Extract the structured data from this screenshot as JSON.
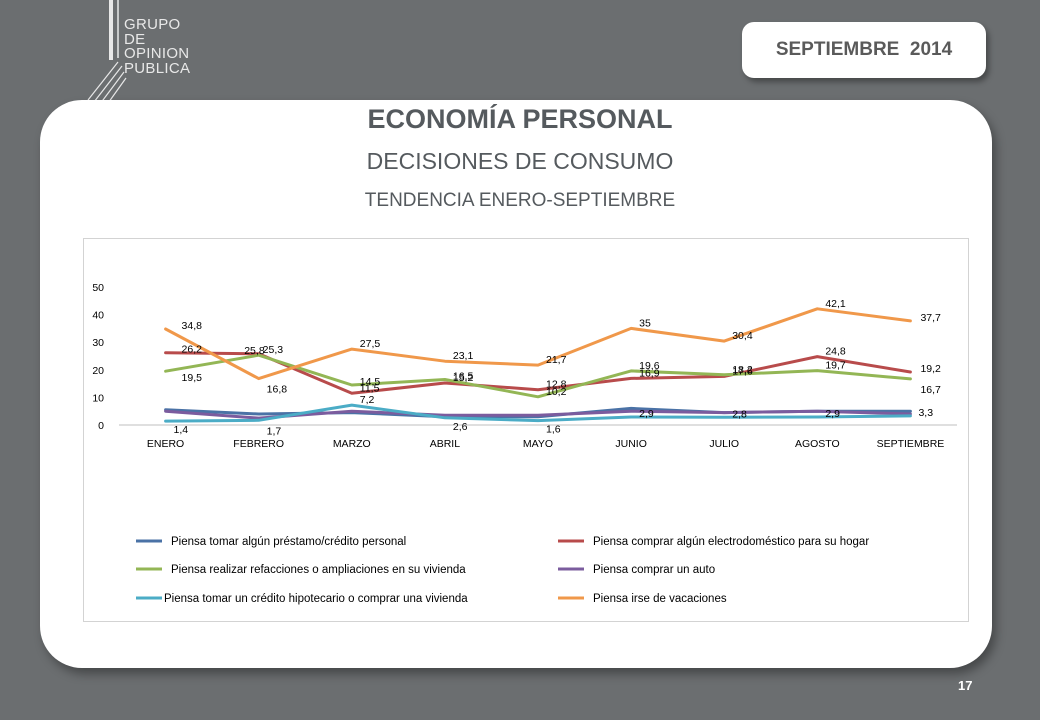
{
  "header": {
    "logo_lines": [
      "GRUPO",
      "DE",
      "OPINION",
      "PUBLICA"
    ],
    "date_badge": "SEPTIEMBRE  2014"
  },
  "slide": {
    "title": "ECONOMÍA PERSONAL",
    "subtitle": "DECISIONES DE CONSUMO",
    "subtitle2": "TENDENCIA ENERO-SEPTIEMBRE",
    "page_number": "17"
  },
  "colors": {
    "background": "#6b6e70",
    "card": "#ffffff",
    "text": "#555a5e"
  },
  "chart_data": {
    "type": "line",
    "categories": [
      "ENERO",
      "FEBRERO",
      "MARZO",
      "ABRIL",
      "MAYO",
      "JUNIO",
      "JULIO",
      "AGOSTO",
      "SEPTIEMBRE"
    ],
    "ylim": [
      0,
      50
    ],
    "yticks": [
      0,
      10,
      20,
      30,
      40,
      50
    ],
    "grid": false,
    "legend": "bottom",
    "series": [
      {
        "name": "Piensa tomar algún préstamo/crédito personal",
        "color": "#4a72a6",
        "values": [
          5.5,
          4.0,
          4.5,
          3.0,
          3.0,
          6.0,
          4.5,
          5.0,
          5.0
        ],
        "labels": [
          null,
          null,
          null,
          null,
          null,
          null,
          null,
          null,
          null
        ]
      },
      {
        "name": "Piensa comprar algún electrodoméstico para su hogar",
        "color": "#b84b4b",
        "values": [
          26.2,
          25.8,
          11.5,
          15.2,
          12.8,
          16.9,
          17.6,
          24.8,
          19.2
        ],
        "labels": [
          "26,2",
          "25,8",
          "11,5",
          "15,2",
          "12,8",
          "16,9",
          "17,6",
          "24,8",
          "19,2"
        ]
      },
      {
        "name": "Piensa realizar refacciones o ampliaciones en su vivienda",
        "color": "#93b655",
        "values": [
          19.5,
          25.3,
          14.5,
          16.5,
          10.2,
          19.6,
          18.2,
          19.7,
          16.7
        ],
        "labels": [
          "19,5",
          "25,3",
          "14,5",
          "16,5",
          "10,2",
          "19,6",
          "18,2",
          "19,7",
          "16,7"
        ]
      },
      {
        "name": "Piensa comprar un auto",
        "color": "#7b5c9e",
        "values": [
          5.0,
          2.5,
          5.0,
          3.5,
          3.5,
          5.0,
          4.5,
          5.0,
          4.0
        ],
        "labels": [
          null,
          null,
          null,
          null,
          null,
          null,
          null,
          null,
          null
        ]
      },
      {
        "name": "Piensa tomar un crédito hipotecario o comprar una vivienda",
        "color": "#4bacc6",
        "values": [
          1.4,
          1.7,
          7.2,
          2.6,
          1.6,
          2.9,
          2.8,
          2.9,
          3.3
        ],
        "labels": [
          "1,4",
          "1,7",
          "7,2",
          "2,6",
          "1,6",
          "2,9",
          "2,8",
          "2,9",
          "3,3"
        ]
      },
      {
        "name": "Piensa irse de vacaciones",
        "color": "#f0984a",
        "values": [
          34.8,
          16.8,
          27.5,
          23.1,
          21.7,
          35,
          30.4,
          42.1,
          37.7
        ],
        "labels": [
          "34,8",
          "16,8",
          "27,5",
          "23,1",
          "21,7",
          "35",
          "30,4",
          "42,1",
          "37,7"
        ]
      }
    ]
  }
}
